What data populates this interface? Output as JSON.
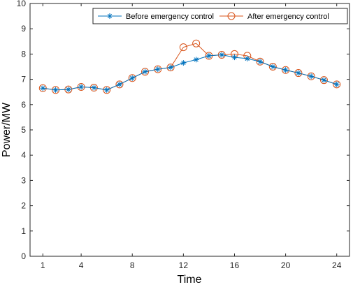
{
  "chart_data": {
    "type": "line",
    "xlabel": "Time",
    "ylabel": "Power/MW",
    "xlim": [
      0,
      25
    ],
    "ylim": [
      0,
      10
    ],
    "xticks": [
      1,
      4,
      8,
      12,
      16,
      20,
      24
    ],
    "yticks": [
      0,
      1,
      2,
      3,
      4,
      5,
      6,
      7,
      8,
      9,
      10
    ],
    "grid": false,
    "legend_position": "top-right",
    "x": [
      1,
      2,
      3,
      4,
      5,
      6,
      7,
      8,
      9,
      10,
      11,
      12,
      13,
      14,
      15,
      16,
      17,
      18,
      19,
      20,
      21,
      22,
      23,
      24
    ],
    "series": [
      {
        "name": "Before emergency control",
        "color": "#0072BD",
        "marker": "asterisk",
        "values": [
          6.65,
          6.58,
          6.6,
          6.7,
          6.67,
          6.58,
          6.8,
          7.05,
          7.3,
          7.4,
          7.47,
          7.65,
          7.78,
          7.93,
          7.97,
          7.87,
          7.82,
          7.7,
          7.5,
          7.37,
          7.25,
          7.12,
          6.97,
          6.8
        ]
      },
      {
        "name": "After emergency control",
        "color": "#D95319",
        "marker": "circle",
        "values": [
          6.65,
          6.58,
          6.6,
          6.7,
          6.67,
          6.58,
          6.8,
          7.05,
          7.3,
          7.4,
          7.47,
          8.27,
          8.42,
          7.93,
          7.97,
          8.0,
          7.93,
          7.7,
          7.5,
          7.37,
          7.25,
          7.12,
          6.97,
          6.8
        ]
      }
    ]
  }
}
